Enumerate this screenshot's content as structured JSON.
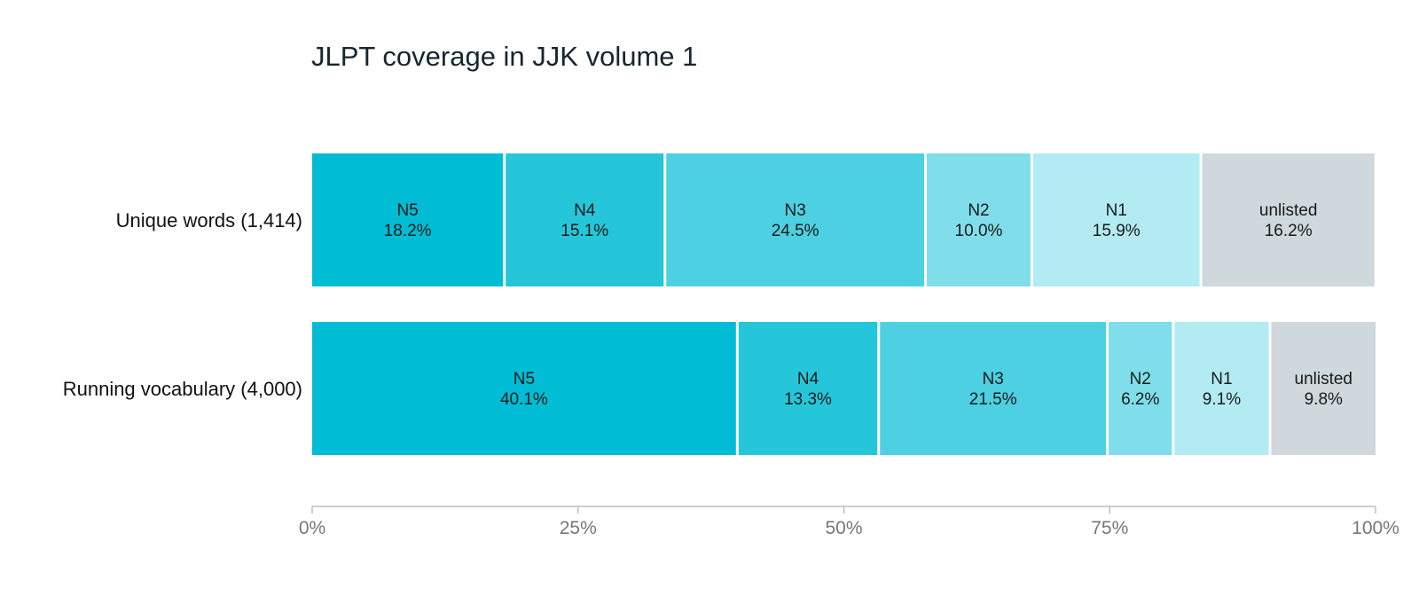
{
  "chart_data": {
    "type": "bar",
    "orientation": "horizontal",
    "stacked": true,
    "normalized": true,
    "title": "JLPT coverage in JJK volume 1",
    "xlabel": "",
    "ylabel": "",
    "xlim": [
      0,
      100
    ],
    "categories": [
      "Unique words (1,414)",
      "Running vocabulary (4,000)"
    ],
    "series": [
      {
        "name": "N5",
        "values": [
          18.2,
          40.1
        ],
        "labels": [
          "18.2%",
          "40.1%"
        ],
        "color": "#00bcd4"
      },
      {
        "name": "N4",
        "values": [
          15.1,
          13.3
        ],
        "labels": [
          "15.1%",
          "13.3%"
        ],
        "color": "#26c6da"
      },
      {
        "name": "N3",
        "values": [
          24.5,
          21.5
        ],
        "labels": [
          "24.5%",
          "21.5%"
        ],
        "color": "#4dd0e1"
      },
      {
        "name": "N2",
        "values": [
          10.0,
          6.2
        ],
        "labels": [
          "10.0%",
          "6.2%"
        ],
        "color": "#80deea"
      },
      {
        "name": "N1",
        "values": [
          15.9,
          9.1
        ],
        "labels": [
          "15.9%",
          "9.1%"
        ],
        "color": "#b2ebf2"
      },
      {
        "name": "unlisted",
        "values": [
          16.2,
          9.8
        ],
        "labels": [
          "16.2%",
          "9.8%"
        ],
        "color": "#cfd8dc"
      }
    ],
    "x_ticks": [
      {
        "value": 0,
        "label": "0%"
      },
      {
        "value": 25,
        "label": "25%"
      },
      {
        "value": 50,
        "label": "50%"
      },
      {
        "value": 75,
        "label": "75%"
      },
      {
        "value": 100,
        "label": "100%"
      }
    ],
    "grid": false,
    "legend": "none",
    "axis_color": "#bdbdbd"
  }
}
